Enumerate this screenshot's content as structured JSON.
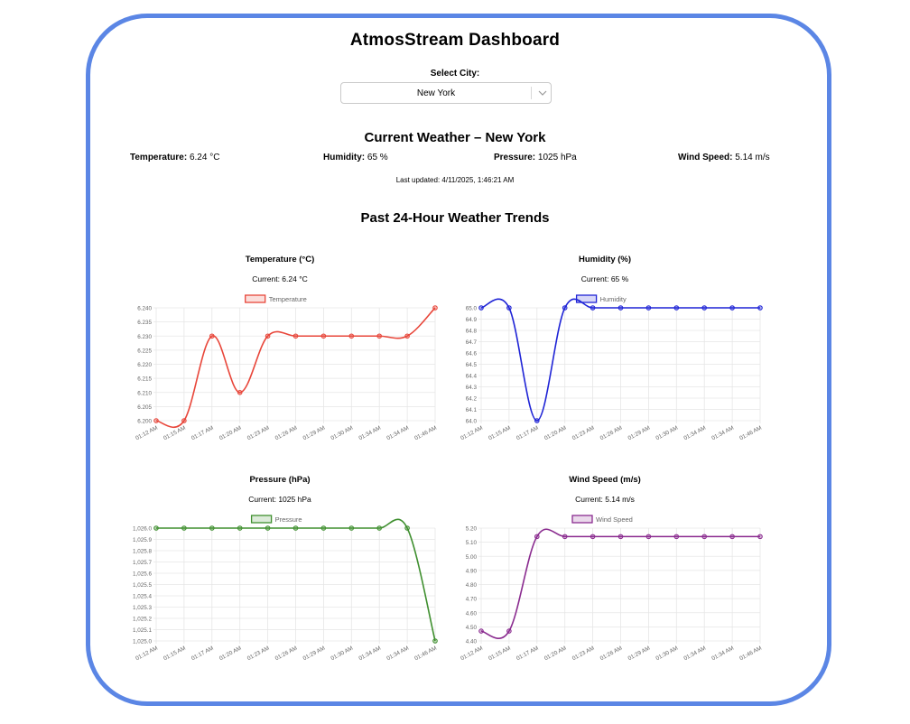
{
  "app": {
    "title": "AtmosStream Dashboard",
    "select_label": "Select City:",
    "selected_city": "New York",
    "current_heading": "Current Weather – New York",
    "metrics": {
      "temperature": {
        "label": "Temperature:",
        "value": "6.24 °C"
      },
      "humidity": {
        "label": "Humidity:",
        "value": "65 %"
      },
      "pressure": {
        "label": "Pressure:",
        "value": "1025 hPa"
      },
      "wind": {
        "label": "Wind Speed:",
        "value": "5.14 m/s"
      }
    },
    "last_updated": "Last updated: 4/11/2025, 1:46:21 AM",
    "trends_heading": "Past 24-Hour Weather Trends"
  },
  "colors": {
    "frame": "#5b86e5",
    "temperature": "#e8463a",
    "humidity": "#1f24d6",
    "pressure": "#3f8f2f",
    "wind": "#8a2b8f",
    "grid": "#e6e6e6",
    "tick": "#666666"
  },
  "chart_data": [
    {
      "id": "temperature",
      "type": "line",
      "title": "Temperature (°C)",
      "current": "Current: 6.24 °C",
      "legend": "Temperature",
      "categories": [
        "01:12 AM",
        "01:15 AM",
        "01:17 AM",
        "01:20 AM",
        "01:23 AM",
        "01:26 AM",
        "01:29 AM",
        "01:30 AM",
        "01:34 AM",
        "01:34 AM",
        "01:46 AM"
      ],
      "values": [
        6.2,
        6.2,
        6.23,
        6.21,
        6.23,
        6.23,
        6.23,
        6.23,
        6.23,
        6.23,
        6.24
      ],
      "ylim": [
        6.2,
        6.24
      ],
      "yticks": [
        "6.200",
        "6.205",
        "6.210",
        "6.215",
        "6.220",
        "6.225",
        "6.230",
        "6.235",
        "6.240"
      ],
      "grid": true,
      "legend_position": "top"
    },
    {
      "id": "humidity",
      "type": "line",
      "title": "Humidity (%)",
      "current": "Current: 65 %",
      "legend": "Humidity",
      "categories": [
        "01:12 AM",
        "01:15 AM",
        "01:17 AM",
        "01:20 AM",
        "01:23 AM",
        "01:26 AM",
        "01:29 AM",
        "01:30 AM",
        "01:34 AM",
        "01:34 AM",
        "01:46 AM"
      ],
      "values": [
        65,
        65,
        64,
        65,
        65,
        65,
        65,
        65,
        65,
        65,
        65
      ],
      "ylim": [
        64.0,
        65.0
      ],
      "yticks": [
        "64.0",
        "64.1",
        "64.2",
        "64.3",
        "64.4",
        "64.5",
        "64.6",
        "64.7",
        "64.8",
        "64.9",
        "65.0"
      ],
      "grid": true,
      "legend_position": "top"
    },
    {
      "id": "pressure",
      "type": "line",
      "title": "Pressure (hPa)",
      "current": "Current: 1025 hPa",
      "legend": "Pressure",
      "categories": [
        "01:12 AM",
        "01:15 AM",
        "01:17 AM",
        "01:20 AM",
        "01:23 AM",
        "01:26 AM",
        "01:29 AM",
        "01:30 AM",
        "01:34 AM",
        "01:34 AM",
        "01:46 AM"
      ],
      "values": [
        1026,
        1026,
        1026,
        1026,
        1026,
        1026,
        1026,
        1026,
        1026,
        1026,
        1025
      ],
      "ylim": [
        1025.0,
        1026.0
      ],
      "yticks": [
        "1,025.0",
        "1,025.1",
        "1,025.2",
        "1,025.3",
        "1,025.4",
        "1,025.5",
        "1,025.6",
        "1,025.7",
        "1,025.8",
        "1,025.9",
        "1,026.0"
      ],
      "grid": true,
      "legend_position": "top"
    },
    {
      "id": "wind",
      "type": "line",
      "title": "Wind Speed (m/s)",
      "current": "Current: 5.14 m/s",
      "legend": "Wind Speed",
      "categories": [
        "01:12 AM",
        "01:15 AM",
        "01:17 AM",
        "01:20 AM",
        "01:23 AM",
        "01:26 AM",
        "01:29 AM",
        "01:30 AM",
        "01:34 AM",
        "01:34 AM",
        "01:46 AM"
      ],
      "values": [
        4.47,
        4.47,
        5.14,
        5.14,
        5.14,
        5.14,
        5.14,
        5.14,
        5.14,
        5.14,
        5.14
      ],
      "ylim": [
        4.4,
        5.2
      ],
      "yticks": [
        "4.40",
        "4.50",
        "4.60",
        "4.70",
        "4.80",
        "4.90",
        "5.00",
        "5.10",
        "5.20"
      ],
      "grid": true,
      "legend_position": "top"
    }
  ]
}
